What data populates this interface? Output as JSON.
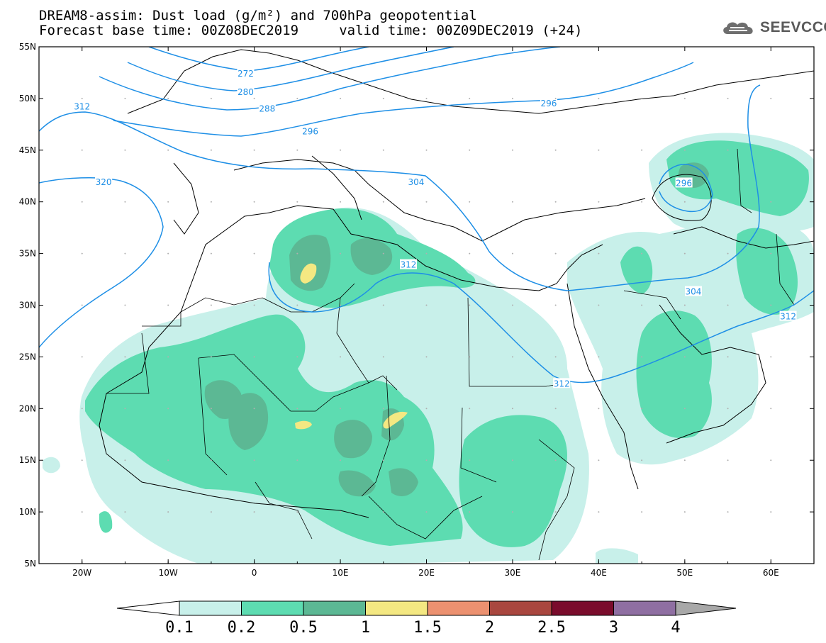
{
  "title": {
    "line1": "DREAM8-assim: Dust load (g/m²) and 700hPa geopotential",
    "line2": "Forecast base time: 00Z08DEC2019     valid time: 00Z09DEC2019 (+24)"
  },
  "logo": {
    "text": "SEEVCCC",
    "icon": "cloud-logo-icon"
  },
  "map": {
    "lon_range": [
      -25,
      65
    ],
    "lat_range": [
      5,
      55
    ],
    "lon_ticks": [
      {
        "value": -20,
        "label": "20W"
      },
      {
        "value": -10,
        "label": "10W"
      },
      {
        "value": 0,
        "label": "0"
      },
      {
        "value": 10,
        "label": "10E"
      },
      {
        "value": 20,
        "label": "20E"
      },
      {
        "value": 30,
        "label": "30E"
      },
      {
        "value": 40,
        "label": "40E"
      },
      {
        "value": 50,
        "label": "50E"
      },
      {
        "value": 60,
        "label": "60E"
      }
    ],
    "lat_ticks": [
      {
        "value": 55,
        "label": "55N"
      },
      {
        "value": 50,
        "label": "50N"
      },
      {
        "value": 45,
        "label": "45N"
      },
      {
        "value": 40,
        "label": "40N"
      },
      {
        "value": 35,
        "label": "35N"
      },
      {
        "value": 30,
        "label": "30N"
      },
      {
        "value": 25,
        "label": "25N"
      },
      {
        "value": 20,
        "label": "20N"
      },
      {
        "value": 15,
        "label": "15N"
      },
      {
        "value": 10,
        "label": "10N"
      },
      {
        "value": 5,
        "label": "5N"
      }
    ],
    "contour_labels": [
      {
        "text": "272",
        "lon": -1,
        "lat": 52.4
      },
      {
        "text": "280",
        "lon": -1,
        "lat": 50.6
      },
      {
        "text": "288",
        "lon": 1.5,
        "lat": 49.0
      },
      {
        "text": "296",
        "lon": 6.5,
        "lat": 46.8
      },
      {
        "text": "304",
        "lon": 18.8,
        "lat": 41.9
      },
      {
        "text": "312",
        "lon": -20,
        "lat": 49.2
      },
      {
        "text": "320",
        "lon": -17.5,
        "lat": 41.9
      },
      {
        "text": "312",
        "lon": 17.9,
        "lat": 33.9
      },
      {
        "text": "312",
        "lon": 35.7,
        "lat": 22.4
      },
      {
        "text": "296",
        "lon": 49.9,
        "lat": 41.8
      },
      {
        "text": "304",
        "lon": 51.0,
        "lat": 31.3
      },
      {
        "text": "296",
        "lon": 34.2,
        "lat": 49.5
      },
      {
        "text": "312",
        "lon": 62.0,
        "lat": 28.9
      }
    ]
  },
  "colorbar": {
    "colors": [
      "#c8f0ea",
      "#5ddcb1",
      "#5cb894",
      "#f4e882",
      "#ec9170",
      "#a9473f",
      "#7a0c2c",
      "#8f6fa2",
      "#a8a8a8"
    ],
    "labels": [
      "0.1",
      "0.2",
      "0.5",
      "1",
      "1.5",
      "2",
      "2.5",
      "3",
      "4"
    ]
  }
}
